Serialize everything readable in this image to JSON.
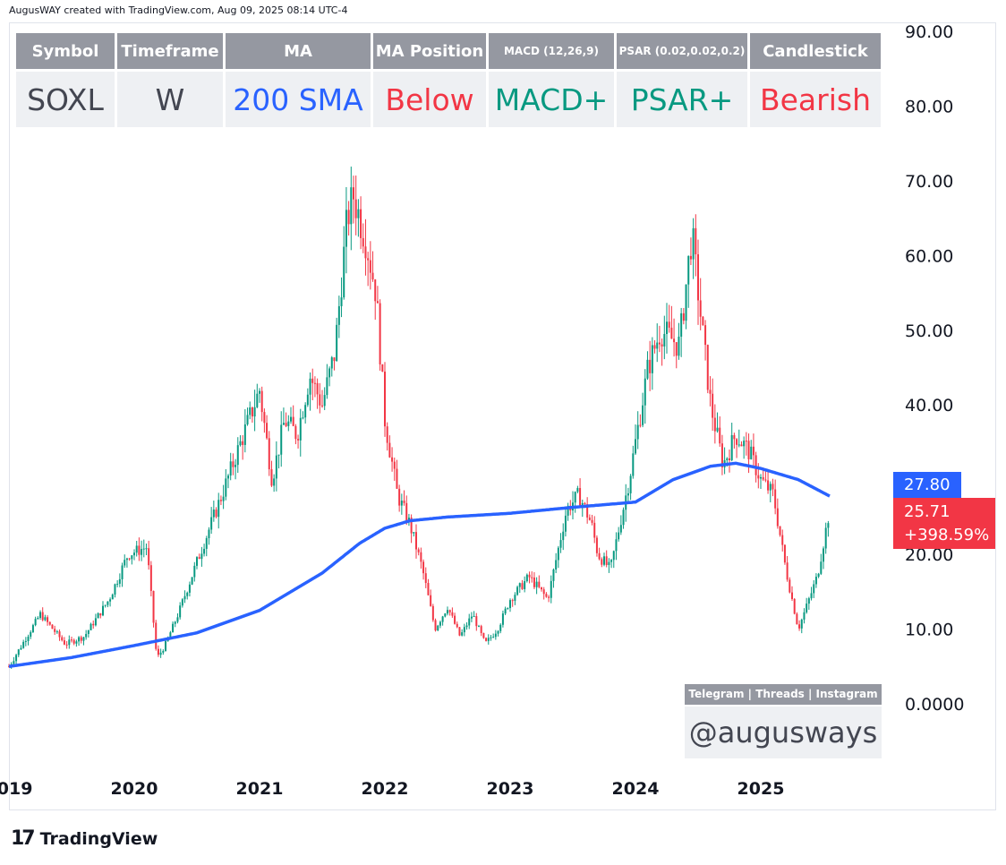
{
  "credit": "AugusWAY created with TradingView.com, Aug 09, 2025 08:14 UTC-4",
  "table": {
    "headers": [
      "Symbol",
      "Timeframe",
      "MA",
      "MA Position",
      "MACD (12,26,9)",
      "PSAR (0.02,0.02,0.2)",
      "Candlestick"
    ],
    "values": [
      "SOXL",
      "W",
      "200 SMA",
      "Below",
      "MACD+",
      "PSAR+",
      "Bearish"
    ],
    "colors": [
      "#434651",
      "#434651",
      "#2962ff",
      "#f23645",
      "#089981",
      "#089981",
      "#f23645"
    ]
  },
  "social": {
    "header": "Telegram | Threads | Instagram",
    "handle": "@augusways"
  },
  "price_tags": {
    "ma": "27.80",
    "last": "25.71",
    "change": "+398.59%"
  },
  "colors": {
    "up": "#089981",
    "down": "#f23645",
    "ma_line": "#2962ff",
    "axis_text": "#131722"
  },
  "brand": {
    "name": "TradingView",
    "mark": "17"
  },
  "chart_data": {
    "type": "line",
    "title": "",
    "xlabel": "",
    "ylabel": "",
    "ylim": [
      0,
      90
    ],
    "y_ticks": [
      "90.00",
      "80.00",
      "70.00",
      "60.00",
      "50.00",
      "40.00",
      "30.00",
      "20.00",
      "10.00",
      "0.0000"
    ],
    "x_ticks": [
      "2019",
      "2020",
      "2021",
      "2022",
      "2023",
      "2024",
      "2025"
    ],
    "grid": false,
    "series": [
      {
        "name": "",
        "style": "candlestick",
        "x": [
          2019.0,
          2019.25,
          2019.45,
          2019.6,
          2019.8,
          2019.95,
          2020.1,
          2020.18,
          2020.25,
          2020.35,
          2020.5,
          2020.7,
          2020.85,
          2021.0,
          2021.1,
          2021.2,
          2021.3,
          2021.4,
          2021.5,
          2021.6,
          2021.7,
          2021.75,
          2021.85,
          2021.93,
          2022.0,
          2022.1,
          2022.2,
          2022.3,
          2022.4,
          2022.5,
          2022.6,
          2022.7,
          2022.8,
          2022.9,
          2023.0,
          2023.15,
          2023.3,
          2023.45,
          2023.55,
          2023.65,
          2023.7,
          2023.8,
          2023.95,
          2024.1,
          2024.2,
          2024.35,
          2024.45,
          2024.52,
          2024.6,
          2024.7,
          2024.8,
          2024.9,
          2025.0,
          2025.1,
          2025.2,
          2025.3,
          2025.45,
          2025.55
        ],
        "close": [
          5,
          12,
          8,
          9,
          14,
          20,
          21,
          6,
          8,
          12,
          19,
          28,
          35,
          42,
          30,
          38,
          36,
          44,
          40,
          47,
          65,
          68,
          62,
          55,
          38,
          28,
          24,
          18,
          10,
          13,
          9,
          12,
          8,
          10,
          14,
          17,
          14,
          26,
          28,
          24,
          20,
          18,
          30,
          45,
          50,
          48,
          63,
          52,
          40,
          32,
          36,
          34,
          30,
          28,
          18,
          10,
          17,
          26
        ]
      },
      {
        "name": "200 SMA",
        "x": [
          2019.0,
          2019.5,
          2020.0,
          2020.5,
          2021.0,
          2021.5,
          2021.8,
          2022.0,
          2022.2,
          2022.5,
          2023.0,
          2023.5,
          2024.0,
          2024.3,
          2024.6,
          2024.8,
          2025.0,
          2025.3,
          2025.55
        ],
        "values": [
          5,
          6.2,
          7.8,
          9.5,
          12.5,
          17.5,
          21.5,
          23.5,
          24.5,
          25,
          25.5,
          26.3,
          27,
          30,
          31.8,
          32.2,
          31.5,
          30,
          27.8
        ]
      }
    ]
  }
}
